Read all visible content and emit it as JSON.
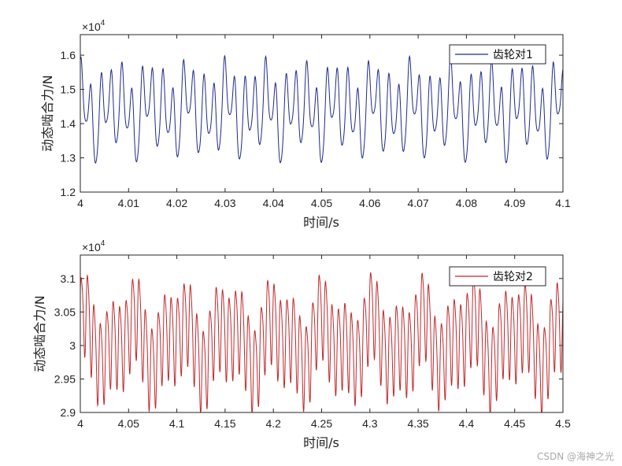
{
  "chart_data": [
    {
      "type": "line",
      "title": "",
      "xlabel": "时间/s",
      "ylabel": "动态啮合力/N",
      "exponent_label": "×10",
      "exponent_power": "4",
      "xlim": [
        4.0,
        4.1
      ],
      "ylim": [
        1.2,
        1.66
      ],
      "xticks": [
        4.0,
        4.01,
        4.02,
        4.03,
        4.04,
        4.05,
        4.06,
        4.07,
        4.08,
        4.09,
        4.1
      ],
      "xtick_labels": [
        "4",
        "4.01",
        "4.02",
        "4.03",
        "4.04",
        "4.05",
        "4.06",
        "4.07",
        "4.08",
        "4.09",
        "4.1"
      ],
      "yticks": [
        1.2,
        1.3,
        1.4,
        1.5,
        1.6
      ],
      "ytick_labels": [
        "1.2",
        "1.3",
        "1.4",
        "1.5",
        "1.6"
      ],
      "legend_position": "top-right",
      "series": [
        {
          "name": "齿轮对1",
          "color": "#1f2a8c",
          "model": {
            "mean": 1.44,
            "n_points": 1400,
            "components": [
              {
                "amp": 0.095,
                "freq": 470,
                "phase": 1.4
              },
              {
                "amp": 0.045,
                "freq": 235,
                "phase": 0.3
              },
              {
                "amp": 0.03,
                "freq": 130,
                "phase": 2.0
              },
              {
                "amp": 0.015,
                "freq": 940,
                "phase": 0.9
              }
            ]
          }
        }
      ]
    },
    {
      "type": "line",
      "title": "",
      "xlabel": "时间/s",
      "ylabel": "动态啮合力/N",
      "exponent_label": "×10",
      "exponent_power": "4",
      "xlim": [
        4.0,
        4.5
      ],
      "ylim": [
        2.9,
        3.135
      ],
      "xticks": [
        4.0,
        4.05,
        4.1,
        4.15,
        4.2,
        4.25,
        4.3,
        4.35,
        4.4,
        4.45,
        4.5
      ],
      "xtick_labels": [
        "4",
        "4.05",
        "4.1",
        "4.15",
        "4.2",
        "4.25",
        "4.3",
        "4.35",
        "4.4",
        "4.45",
        "4.5"
      ],
      "yticks": [
        2.9,
        2.95,
        3.0,
        3.05,
        3.1
      ],
      "ytick_labels": [
        "2.9",
        "2.95",
        "3",
        "3.05",
        "3.1"
      ],
      "legend_position": "top-right",
      "series": [
        {
          "name": "齿轮对2",
          "color": "#c0282b",
          "model": {
            "mean": 3.01,
            "n_points": 2400,
            "components": [
              {
                "amp": 0.062,
                "freq": 150,
                "phase": 0.5
              },
              {
                "amp": 0.025,
                "freq": 20,
                "phase": 1.2
              },
              {
                "amp": 0.02,
                "freq": 37,
                "phase": 0.4
              },
              {
                "amp": 0.012,
                "freq": 300,
                "phase": 1.9
              }
            ]
          }
        }
      ]
    }
  ],
  "watermark": "CSDN @海神之光"
}
